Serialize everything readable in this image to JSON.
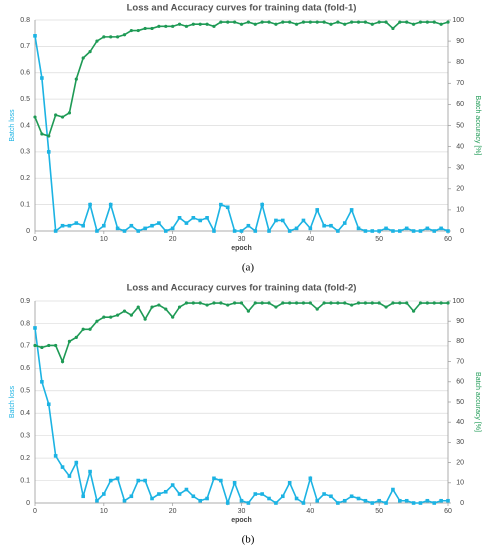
{
  "chart_data": [
    {
      "type": "line",
      "title": "Loss and Accuracy curves for training data (fold-1)",
      "caption": "(a)",
      "xlabel": "epoch",
      "ylabel": "Batch loss",
      "y2label": "Batch accuracy [%]",
      "x": [
        0,
        1,
        2,
        3,
        4,
        5,
        6,
        7,
        8,
        9,
        10,
        11,
        12,
        13,
        14,
        15,
        16,
        17,
        18,
        19,
        20,
        21,
        22,
        23,
        24,
        25,
        26,
        27,
        28,
        29,
        30,
        31,
        32,
        33,
        34,
        35,
        36,
        37,
        38,
        39,
        40,
        41,
        42,
        43,
        44,
        45,
        46,
        47,
        48,
        49,
        50,
        51,
        52,
        53,
        54,
        55,
        56,
        57,
        58,
        59,
        60
      ],
      "xlim": [
        0,
        60
      ],
      "xticks": [
        0,
        10,
        20,
        30,
        40,
        50,
        60
      ],
      "ylim": [
        0,
        0.8
      ],
      "yticks": [
        0,
        0.1,
        0.2,
        0.3,
        0.4,
        0.5,
        0.6,
        0.7,
        0.8
      ],
      "y2lim": [
        0,
        100
      ],
      "y2ticks": [
        0,
        10,
        20,
        30,
        40,
        50,
        60,
        70,
        80,
        90,
        100
      ],
      "series": [
        {
          "color": "#1cb3e3",
          "marker": "square",
          "values": [
            0.74,
            0.58,
            0.3,
            0.0,
            0.02,
            0.02,
            0.03,
            0.02,
            0.1,
            0.0,
            0.02,
            0.1,
            0.01,
            0.0,
            0.02,
            0.0,
            0.01,
            0.02,
            0.03,
            0.0,
            0.01,
            0.05,
            0.03,
            0.05,
            0.04,
            0.05,
            0.0,
            0.1,
            0.09,
            0.0,
            0.0,
            0.02,
            0.0,
            0.1,
            0.0,
            0.04,
            0.04,
            0.0,
            0.01,
            0.04,
            0.01,
            0.08,
            0.02,
            0.02,
            0.0,
            0.03,
            0.08,
            0.01,
            0.0,
            0.0,
            0.0,
            0.01,
            0.0,
            0.0,
            0.01,
            0.0,
            0.0,
            0.01,
            0.0,
            0.01,
            0.0
          ]
        },
        {
          "color": "#1e9a55",
          "marker": "circle",
          "axis": "y2",
          "values": [
            54,
            46,
            45,
            55,
            54,
            56,
            72,
            82,
            85,
            90,
            92,
            92,
            92,
            93,
            95,
            95,
            96,
            96,
            97,
            97,
            97,
            98,
            97,
            98,
            98,
            98,
            97,
            99,
            99,
            99,
            98,
            99,
            98,
            99,
            99,
            98,
            99,
            99,
            98,
            99,
            99,
            99,
            99,
            98,
            99,
            98,
            99,
            99,
            99,
            98,
            99,
            99,
            96,
            99,
            99,
            98,
            99,
            99,
            99,
            98,
            99
          ]
        }
      ]
    },
    {
      "type": "line",
      "title": "Loss and Accuracy curves for training data (fold-2)",
      "caption": "(b)",
      "xlabel": "epoch",
      "ylabel": "Batch loss",
      "y2label": "Batch accuracy [%]",
      "x": [
        0,
        1,
        2,
        3,
        4,
        5,
        6,
        7,
        8,
        9,
        10,
        11,
        12,
        13,
        14,
        15,
        16,
        17,
        18,
        19,
        20,
        21,
        22,
        23,
        24,
        25,
        26,
        27,
        28,
        29,
        30,
        31,
        32,
        33,
        34,
        35,
        36,
        37,
        38,
        39,
        40,
        41,
        42,
        43,
        44,
        45,
        46,
        47,
        48,
        49,
        50,
        51,
        52,
        53,
        54,
        55,
        56,
        57,
        58,
        59,
        60
      ],
      "xlim": [
        0,
        60
      ],
      "xticks": [
        0,
        10,
        20,
        30,
        40,
        50,
        60
      ],
      "ylim": [
        0,
        0.9
      ],
      "yticks": [
        0,
        0.1,
        0.2,
        0.3,
        0.4,
        0.5,
        0.6,
        0.7,
        0.8,
        0.9
      ],
      "y2lim": [
        0,
        100
      ],
      "y2ticks": [
        0,
        10,
        20,
        30,
        40,
        50,
        60,
        70,
        80,
        90,
        100
      ],
      "series": [
        {
          "color": "#1cb3e3",
          "marker": "square",
          "values": [
            0.78,
            0.54,
            0.44,
            0.21,
            0.16,
            0.12,
            0.18,
            0.03,
            0.14,
            0.01,
            0.04,
            0.1,
            0.11,
            0.01,
            0.03,
            0.1,
            0.1,
            0.02,
            0.04,
            0.05,
            0.08,
            0.04,
            0.06,
            0.03,
            0.01,
            0.02,
            0.11,
            0.1,
            0.0,
            0.09,
            0.01,
            0.0,
            0.04,
            0.04,
            0.02,
            0.0,
            0.03,
            0.09,
            0.02,
            0.0,
            0.11,
            0.01,
            0.04,
            0.03,
            0.0,
            0.01,
            0.03,
            0.02,
            0.01,
            0.0,
            0.01,
            0.0,
            0.06,
            0.01,
            0.01,
            0.0,
            0.0,
            0.01,
            0.0,
            0.01,
            0.01
          ]
        },
        {
          "color": "#1e9a55",
          "marker": "circle",
          "axis": "y2",
          "values": [
            78,
            77,
            78,
            78,
            70,
            80,
            82,
            86,
            86,
            90,
            92,
            92,
            93,
            95,
            93,
            97,
            91,
            97,
            98,
            96,
            92,
            97,
            99,
            99,
            99,
            98,
            99,
            99,
            98,
            99,
            99,
            95,
            99,
            99,
            99,
            97,
            99,
            99,
            99,
            99,
            99,
            96,
            99,
            99,
            99,
            99,
            98,
            99,
            99,
            99,
            99,
            97,
            99,
            99,
            99,
            95,
            99,
            99,
            99,
            99,
            99
          ]
        }
      ]
    }
  ]
}
